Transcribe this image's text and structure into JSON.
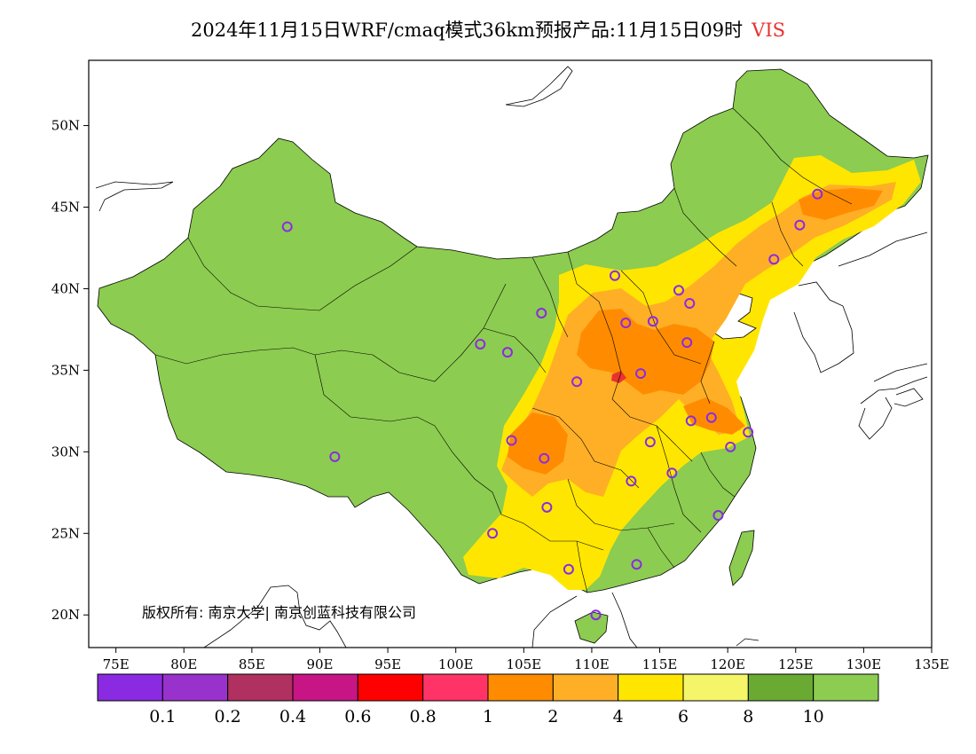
{
  "header": {
    "title": "2024年11月15日WRF/cmaq模式36km预报产品:11月15日09时",
    "variable": "VIS"
  },
  "map": {
    "lon_range": [
      73,
      135
    ],
    "lat_range": [
      18,
      54
    ],
    "lon_ticks": [
      "75E",
      "80E",
      "85E",
      "90E",
      "95E",
      "100E",
      "105E",
      "110E",
      "115E",
      "120E",
      "125E",
      "130E",
      "135E"
    ],
    "lat_ticks": [
      "20N",
      "25N",
      "30N",
      "35N",
      "40N",
      "45N",
      "50N"
    ],
    "copyright": "版权所有: 南京大学| 南京创蓝科技有限公司",
    "station_color": "#8a2be2",
    "stations": [
      {
        "lon": 87.6,
        "lat": 43.8
      },
      {
        "lon": 91.1,
        "lat": 29.7
      },
      {
        "lon": 101.8,
        "lat": 36.6
      },
      {
        "lon": 103.8,
        "lat": 36.1
      },
      {
        "lon": 106.3,
        "lat": 38.5
      },
      {
        "lon": 111.7,
        "lat": 40.8
      },
      {
        "lon": 112.5,
        "lat": 37.9
      },
      {
        "lon": 114.5,
        "lat": 38.0
      },
      {
        "lon": 116.4,
        "lat": 39.9
      },
      {
        "lon": 117.2,
        "lat": 39.1
      },
      {
        "lon": 117.0,
        "lat": 36.7
      },
      {
        "lon": 113.6,
        "lat": 34.8
      },
      {
        "lon": 108.9,
        "lat": 34.3
      },
      {
        "lon": 117.3,
        "lat": 31.9
      },
      {
        "lon": 118.8,
        "lat": 32.1
      },
      {
        "lon": 121.5,
        "lat": 31.2
      },
      {
        "lon": 120.2,
        "lat": 30.3
      },
      {
        "lon": 114.3,
        "lat": 30.6
      },
      {
        "lon": 115.9,
        "lat": 28.7
      },
      {
        "lon": 112.9,
        "lat": 28.2
      },
      {
        "lon": 106.5,
        "lat": 29.6
      },
      {
        "lon": 104.1,
        "lat": 30.7
      },
      {
        "lon": 106.7,
        "lat": 26.6
      },
      {
        "lon": 102.7,
        "lat": 25.0
      },
      {
        "lon": 108.3,
        "lat": 22.8
      },
      {
        "lon": 113.3,
        "lat": 23.1
      },
      {
        "lon": 119.3,
        "lat": 26.1
      },
      {
        "lon": 110.3,
        "lat": 20.0
      },
      {
        "lon": 123.4,
        "lat": 41.8
      },
      {
        "lon": 125.3,
        "lat": 43.9
      },
      {
        "lon": 126.6,
        "lat": 45.8
      }
    ]
  },
  "colorbar": {
    "colors": [
      "#8a2be2",
      "#9932cc",
      "#b03060",
      "#c71585",
      "#ff0000",
      "#ff3366",
      "#ff8c00",
      "#ffaf26",
      "#ffe600",
      "#f5f56a",
      "#6aaa32",
      "#8ccc50"
    ],
    "labels": [
      "0.1",
      "0.2",
      "0.4",
      "0.6",
      "0.8",
      "1",
      "2",
      "4",
      "6",
      "8",
      "10"
    ]
  }
}
